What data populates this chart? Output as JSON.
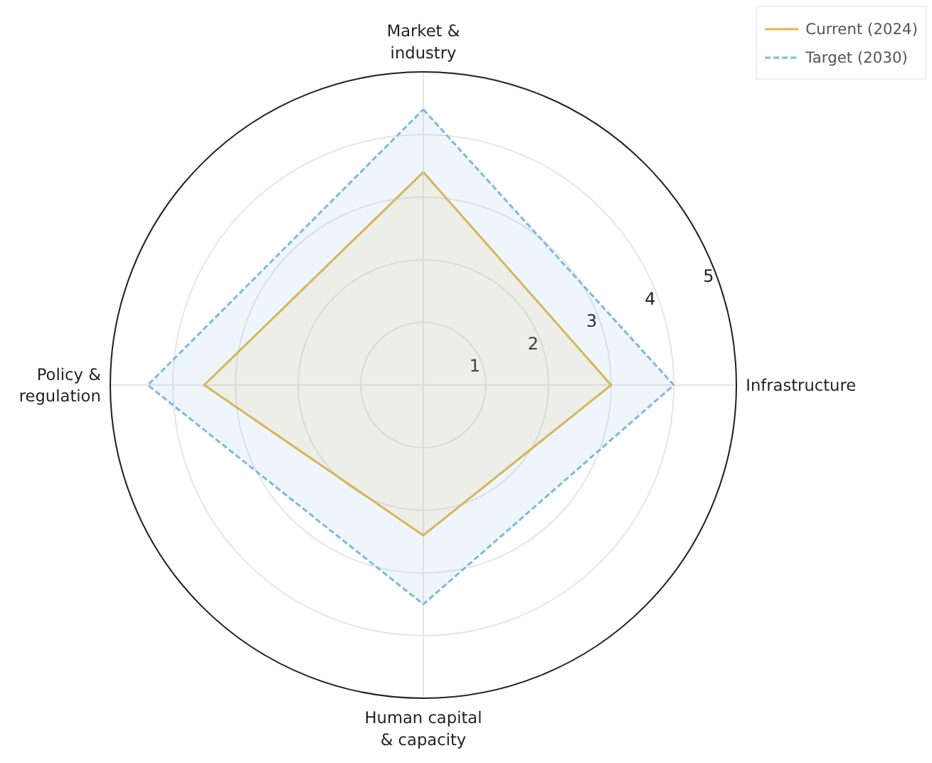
{
  "chart_data": {
    "type": "radar",
    "categories": [
      "Market &\nindustry",
      "Infrastructure",
      "Human capital\n& capacity",
      "Policy &\nregulation"
    ],
    "series": [
      {
        "name": "Current (2024)",
        "color": "#e3b54a",
        "values": [
          3.4,
          3.0,
          2.4,
          3.5
        ],
        "line_style": "solid"
      },
      {
        "name": "Target (2030)",
        "color": "#7cb9e0",
        "values": [
          4.4,
          4.0,
          3.5,
          4.4
        ],
        "line_style": "dashed"
      }
    ],
    "ylim": [
      0,
      5
    ],
    "yticks": [
      1,
      2,
      3,
      4,
      5
    ],
    "grid": true,
    "legend": "top right",
    "marker": "none"
  }
}
